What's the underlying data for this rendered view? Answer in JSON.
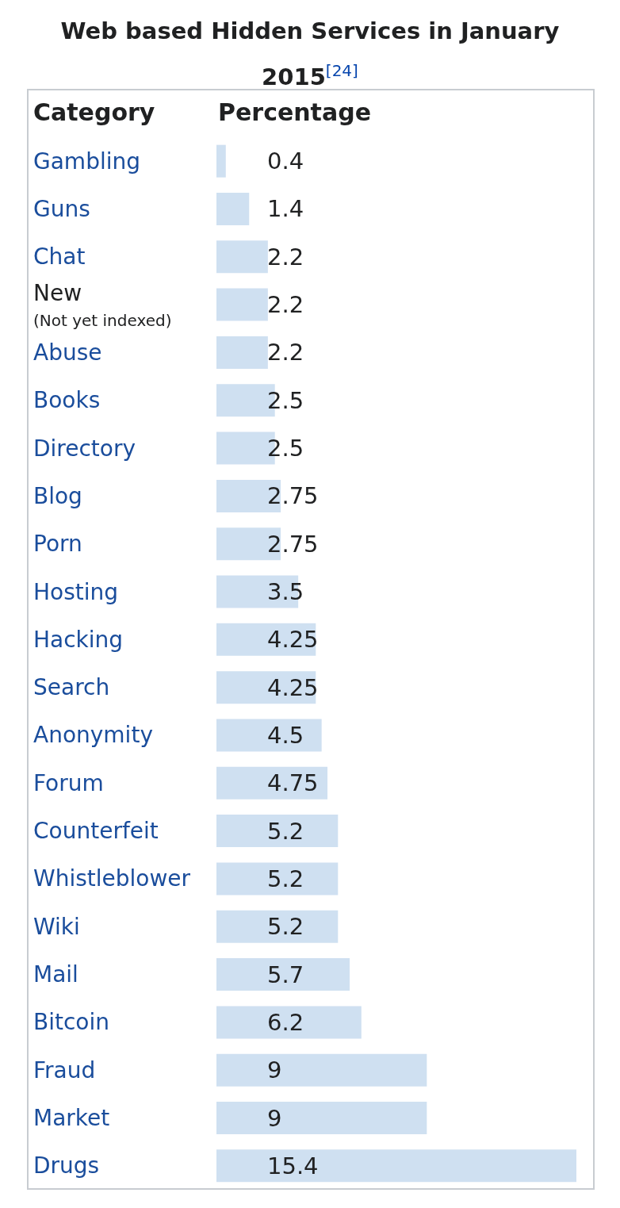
{
  "chart_data": {
    "type": "bar",
    "orientation": "horizontal",
    "title": "Web based Hidden Services in January 2015$^{[24]}$",
    "ylabel": "Category",
    "xlabel": "Percentage",
    "categories": [
      "Gambling",
      "Guns",
      "Chat",
      "New\n(Not yet indexed)",
      "Abuse",
      "Books",
      "Directory",
      "Blog",
      "Porn",
      "Hosting",
      "Hacking",
      "Search",
      "Anonymity",
      "Forum",
      "Counterfeit",
      "Whistleblower",
      "Wiki",
      "Mail",
      "Bitcoin",
      "Fraud",
      "Market",
      "Drugs"
    ],
    "values": [
      0.4,
      1.4,
      2.2,
      2.2,
      2.2,
      2.5,
      2.5,
      2.75,
      2.75,
      3.5,
      4.25,
      4.25,
      4.5,
      4.75,
      5.2,
      5.2,
      5.2,
      5.7,
      6.2,
      9,
      9,
      15.4
    ],
    "color": "#cfe0f1",
    "data_labels": true
  }
}
